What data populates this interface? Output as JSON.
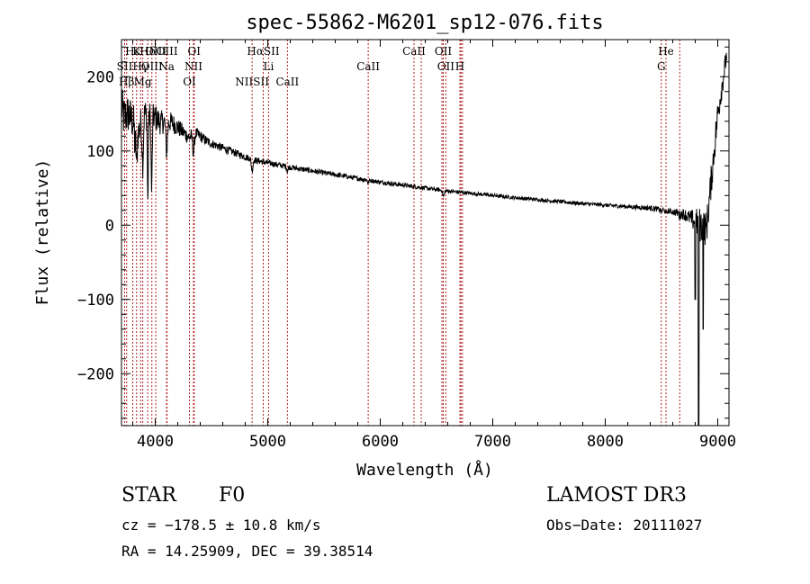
{
  "chart_data": {
    "type": "line",
    "title": "spec-55862-M6201_sp12-076.fits",
    "xlabel": "Wavelength (Å)",
    "ylabel": "Flux (relative)",
    "xlim": [
      3700,
      9100
    ],
    "ylim": [
      -270,
      250
    ],
    "x_ticks": [
      4000,
      5000,
      6000,
      7000,
      8000,
      9000
    ],
    "x_tick_labels": [
      "4000",
      "5000",
      "6000",
      "7000",
      "8000",
      "9000"
    ],
    "y_ticks": [
      -200,
      -100,
      0,
      100,
      200
    ],
    "y_tick_labels": [
      "−200",
      "−100",
      "0",
      "100",
      "200"
    ],
    "line_color": "#000000",
    "marker_color": "#b22222",
    "spectral_lines": [
      {
        "label": "Hε",
        "wavelength": 3800,
        "row": 0
      },
      {
        "label": "K",
        "wavelength": 3834,
        "row": 0
      },
      {
        "label": "Hδ",
        "wavelength": 3933,
        "row": 0
      },
      {
        "label": "OIII",
        "wavelength": 4005,
        "row": 0
      },
      {
        "label": "OIII",
        "wavelength": 4105,
        "row": 0
      },
      {
        "label": "OI",
        "wavelength": 4346,
        "row": 0
      },
      {
        "label": "HαSII",
        "wavelength": 4960,
        "row": 0
      },
      {
        "label": "CaII",
        "wavelength": 6300,
        "row": 0
      },
      {
        "label": "OII",
        "wavelength": 6560,
        "row": 0
      },
      {
        "label": "He",
        "wavelength": 8540,
        "row": 0
      },
      {
        "label": "SII",
        "wavelength": 3728,
        "row": 1
      },
      {
        "label": "Hγ",
        "wavelength": 3870,
        "row": 1
      },
      {
        "label": "OIII",
        "wavelength": 3970,
        "row": 1
      },
      {
        "label": "Na",
        "wavelength": 4101,
        "row": 1
      },
      {
        "label": "NII",
        "wavelength": 4340,
        "row": 1
      },
      {
        "label": "Li",
        "wavelength": 5007,
        "row": 1
      },
      {
        "label": "CaII",
        "wavelength": 5893,
        "row": 1
      },
      {
        "label": "OII",
        "wavelength": 6583,
        "row": 1
      },
      {
        "label": "H",
        "wavelength": 6708,
        "row": 1
      },
      {
        "label": "G",
        "wavelength": 8498,
        "row": 1
      },
      {
        "label": "Hβ",
        "wavelength": 3746,
        "row": 2
      },
      {
        "label": "Mg",
        "wavelength": 3889,
        "row": 2
      },
      {
        "label": "OI",
        "wavelength": 4304,
        "row": 2
      },
      {
        "label": "NIISII",
        "wavelength": 4861,
        "row": 2
      },
      {
        "label": "CaII",
        "wavelength": 5175,
        "row": 2
      },
      {
        "label": "",
        "wavelength": 6364,
        "row": 2
      },
      {
        "label": "",
        "wavelength": 6548,
        "row": 2
      },
      {
        "label": "",
        "wavelength": 6717,
        "row": 2
      },
      {
        "label": "",
        "wavelength": 8662,
        "row": 2
      },
      {
        "label": "",
        "wavelength": 6731,
        "row": 2
      }
    ],
    "anchors": [
      [
        3700,
        160
      ],
      [
        3720,
        145
      ],
      [
        3760,
        150
      ],
      [
        3800,
        140
      ],
      [
        3850,
        125
      ],
      [
        3900,
        150
      ],
      [
        3950,
        148
      ],
      [
        4000,
        145
      ],
      [
        4050,
        138
      ],
      [
        4100,
        140
      ],
      [
        4150,
        138
      ],
      [
        4200,
        132
      ],
      [
        4250,
        125
      ],
      [
        4300,
        118
      ],
      [
        4350,
        124
      ],
      [
        4400,
        120
      ],
      [
        4450,
        114
      ],
      [
        4500,
        110
      ],
      [
        4600,
        104
      ],
      [
        4700,
        98
      ],
      [
        4800,
        92
      ],
      [
        4900,
        87
      ],
      [
        5000,
        84
      ],
      [
        5100,
        81
      ],
      [
        5200,
        78
      ],
      [
        5400,
        73
      ],
      [
        5600,
        68
      ],
      [
        5800,
        63
      ],
      [
        6000,
        58
      ],
      [
        6200,
        54
      ],
      [
        6400,
        50
      ],
      [
        6600,
        46
      ],
      [
        6800,
        43
      ],
      [
        7000,
        40
      ],
      [
        7200,
        37
      ],
      [
        7500,
        33
      ],
      [
        7800,
        29
      ],
      [
        8000,
        27
      ],
      [
        8200,
        25
      ],
      [
        8400,
        23
      ],
      [
        8500,
        21
      ],
      [
        8600,
        18
      ],
      [
        8700,
        15
      ],
      [
        8750,
        10
      ],
      [
        8800,
        5
      ],
      [
        8850,
        0
      ],
      [
        8900,
        -5
      ],
      [
        9000,
        150
      ],
      [
        9080,
        230
      ]
    ],
    "absorption_dips": [
      {
        "wavelength": 3820,
        "depth": 30,
        "width": 6
      },
      {
        "wavelength": 3835,
        "depth": 50,
        "width": 7
      },
      {
        "wavelength": 3889,
        "depth": 60,
        "width": 8
      },
      {
        "wavelength": 3934,
        "depth": 120,
        "width": 6
      },
      {
        "wavelength": 3968,
        "depth": 100,
        "width": 7
      },
      {
        "wavelength": 4101,
        "depth": 40,
        "width": 10
      },
      {
        "wavelength": 4340,
        "depth": 25,
        "width": 10
      },
      {
        "wavelength": 4861,
        "depth": 15,
        "width": 10
      },
      {
        "wavelength": 5175,
        "depth": 6,
        "width": 8
      },
      {
        "wavelength": 5893,
        "depth": 5,
        "width": 6
      },
      {
        "wavelength": 6563,
        "depth": 8,
        "width": 10
      },
      {
        "wavelength": 8498,
        "depth": 4,
        "width": 8
      },
      {
        "wavelength": 8542,
        "depth": 4,
        "width": 8
      },
      {
        "wavelength": 8662,
        "depth": 4,
        "width": 8
      }
    ],
    "noise_amplitude": [
      [
        3700,
        30
      ],
      [
        3950,
        20
      ],
      [
        4200,
        12
      ],
      [
        4500,
        6
      ],
      [
        5000,
        4
      ],
      [
        6000,
        3
      ],
      [
        7000,
        2.5
      ],
      [
        8000,
        2.5
      ],
      [
        8600,
        4
      ],
      [
        8750,
        10
      ],
      [
        8850,
        25
      ],
      [
        9000,
        20
      ],
      [
        9100,
        10
      ]
    ],
    "spikes": [
      {
        "wavelength": 8800,
        "value": -100
      },
      {
        "wavelength": 8830,
        "value": -270
      },
      {
        "wavelength": 8870,
        "value": -140
      }
    ]
  },
  "info": {
    "object_class": "STAR",
    "subclass": "F0",
    "survey": "LAMOST DR3",
    "cz": "cz = −178.5 ± 10.8 km/s",
    "obs_date": "Obs−Date: 20111027",
    "coords": "RA =  14.25909, DEC =  39.38514"
  }
}
